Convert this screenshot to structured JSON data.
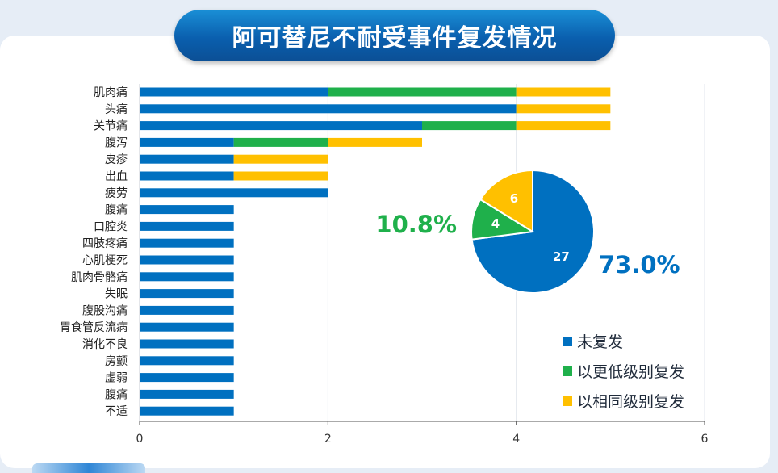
{
  "title": "阿可替尼不耐受事件复发情况",
  "colors": {
    "no_recur": "#0070c0",
    "lower_dose": "#1fb04b",
    "same_dose": "#ffc000"
  },
  "legend": [
    {
      "label": "未复发",
      "color_key": "no_recur"
    },
    {
      "label": "以更低级别复发",
      "color_key": "lower_dose"
    },
    {
      "label": "以相同级别复发",
      "color_key": "same_dose"
    }
  ],
  "chart_data": [
    {
      "type": "bar",
      "orientation": "horizontal",
      "stacked": true,
      "categories": [
        "肌肉痛",
        "头痛",
        "关节痛",
        "腹泻",
        "皮疹",
        "出血",
        "疲劳",
        "腹痛",
        "口腔炎",
        "四肢疼痛",
        "心肌梗死",
        "肌肉骨骼痛",
        "失眠",
        "腹股沟痛",
        "胃食管反流病",
        "消化不良",
        "房颤",
        "虚弱",
        "腹痛",
        "不适"
      ],
      "series": [
        {
          "name": "未复发",
          "color": "#0070c0",
          "values": [
            2,
            4,
            3,
            1,
            1,
            1,
            2,
            1,
            1,
            1,
            1,
            1,
            1,
            1,
            1,
            1,
            1,
            1,
            1,
            1
          ]
        },
        {
          "name": "以更低级别复发",
          "color": "#1fb04b",
          "values": [
            2,
            0,
            1,
            1,
            0,
            0,
            0,
            0,
            0,
            0,
            0,
            0,
            0,
            0,
            0,
            0,
            0,
            0,
            0,
            0
          ]
        },
        {
          "name": "以相同级别复发",
          "color": "#ffc000",
          "values": [
            1,
            1,
            1,
            1,
            1,
            1,
            0,
            0,
            0,
            0,
            0,
            0,
            0,
            0,
            0,
            0,
            0,
            0,
            0,
            0
          ]
        }
      ],
      "xlim": [
        0,
        6
      ],
      "xticks": [
        "0",
        "2",
        "4",
        "6"
      ],
      "grid": true
    },
    {
      "type": "pie",
      "slices": [
        {
          "name": "未复发",
          "value": 27,
          "label": "27",
          "color": "#0070c0",
          "percent_label": "73.0%"
        },
        {
          "name": "以更低级别复发",
          "value": 4,
          "label": "4",
          "color": "#1fb04b",
          "percent_label": "10.8%"
        },
        {
          "name": "以相同级别复发",
          "value": 6,
          "label": "6",
          "color": "#ffc000",
          "percent_label": ""
        }
      ]
    }
  ]
}
